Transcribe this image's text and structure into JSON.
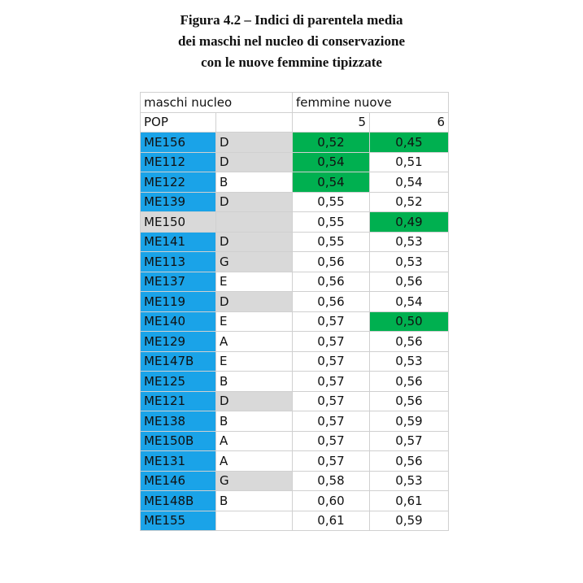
{
  "title_lines": [
    "Figura 4.2 – Indici di parentela media",
    "dei maschi nel nucleo di conservazione",
    "con le nuove femmine tipizzate"
  ],
  "headers": {
    "males": "maschi nucleo",
    "females": "femmine nuove",
    "pop": "POP",
    "col5": "5",
    "col6": "6"
  },
  "colors": {
    "blue": "#1aa3e8",
    "gray": "#d9d9d9",
    "green": "#00b050"
  },
  "rows": [
    {
      "id": "ME156",
      "grp": "D",
      "v5": "0,52",
      "v6": "0,45",
      "blue": true,
      "gray": true,
      "g5": true,
      "g6": true
    },
    {
      "id": "ME112",
      "grp": "D",
      "v5": "0,54",
      "v6": "0,51",
      "blue": true,
      "gray": true,
      "g5": true,
      "g6": false
    },
    {
      "id": "ME122",
      "grp": "B",
      "v5": "0,54",
      "v6": "0,54",
      "blue": true,
      "gray": false,
      "g5": true,
      "g6": false
    },
    {
      "id": "ME139",
      "grp": "D",
      "v5": "0,55",
      "v6": "0,52",
      "blue": true,
      "gray": true,
      "g5": false,
      "g6": false
    },
    {
      "id": "ME150",
      "grp": "",
      "v5": "0,55",
      "v6": "0,49",
      "blue": false,
      "gray": true,
      "g5": false,
      "g6": true,
      "rowgray": true
    },
    {
      "id": "ME141",
      "grp": "D",
      "v5": "0,55",
      "v6": "0,53",
      "blue": true,
      "gray": true,
      "g5": false,
      "g6": false
    },
    {
      "id": "ME113",
      "grp": "G",
      "v5": "0,56",
      "v6": "0,53",
      "blue": true,
      "gray": true,
      "g5": false,
      "g6": false
    },
    {
      "id": "ME137",
      "grp": "E",
      "v5": "0,56",
      "v6": "0,56",
      "blue": true,
      "gray": false,
      "g5": false,
      "g6": false
    },
    {
      "id": "ME119",
      "grp": "D",
      "v5": "0,56",
      "v6": "0,54",
      "blue": true,
      "gray": true,
      "g5": false,
      "g6": false
    },
    {
      "id": "ME140",
      "grp": "E",
      "v5": "0,57",
      "v6": "0,50",
      "blue": true,
      "gray": false,
      "g5": false,
      "g6": true
    },
    {
      "id": "ME129",
      "grp": "A",
      "v5": "0,57",
      "v6": "0,56",
      "blue": true,
      "gray": false,
      "g5": false,
      "g6": false
    },
    {
      "id": "ME147B",
      "grp": "E",
      "v5": "0,57",
      "v6": "0,53",
      "blue": true,
      "gray": false,
      "g5": false,
      "g6": false
    },
    {
      "id": "ME125",
      "grp": "B",
      "v5": "0,57",
      "v6": "0,56",
      "blue": true,
      "gray": false,
      "g5": false,
      "g6": false
    },
    {
      "id": "ME121",
      "grp": "D",
      "v5": "0,57",
      "v6": "0,56",
      "blue": true,
      "gray": true,
      "g5": false,
      "g6": false
    },
    {
      "id": "ME138",
      "grp": "B",
      "v5": "0,57",
      "v6": "0,59",
      "blue": true,
      "gray": false,
      "g5": false,
      "g6": false
    },
    {
      "id": "ME150B",
      "grp": "A",
      "v5": "0,57",
      "v6": "0,57",
      "blue": true,
      "gray": false,
      "g5": false,
      "g6": false
    },
    {
      "id": "ME131",
      "grp": "A",
      "v5": "0,57",
      "v6": "0,56",
      "blue": true,
      "gray": false,
      "g5": false,
      "g6": false
    },
    {
      "id": "ME146",
      "grp": "G",
      "v5": "0,58",
      "v6": "0,53",
      "blue": true,
      "gray": true,
      "g5": false,
      "g6": false
    },
    {
      "id": "ME148B",
      "grp": "B",
      "v5": "0,60",
      "v6": "0,61",
      "blue": true,
      "gray": false,
      "g5": false,
      "g6": false
    },
    {
      "id": "ME155",
      "grp": "",
      "v5": "0,61",
      "v6": "0,59",
      "blue": true,
      "gray": false,
      "g5": false,
      "g6": false
    }
  ]
}
